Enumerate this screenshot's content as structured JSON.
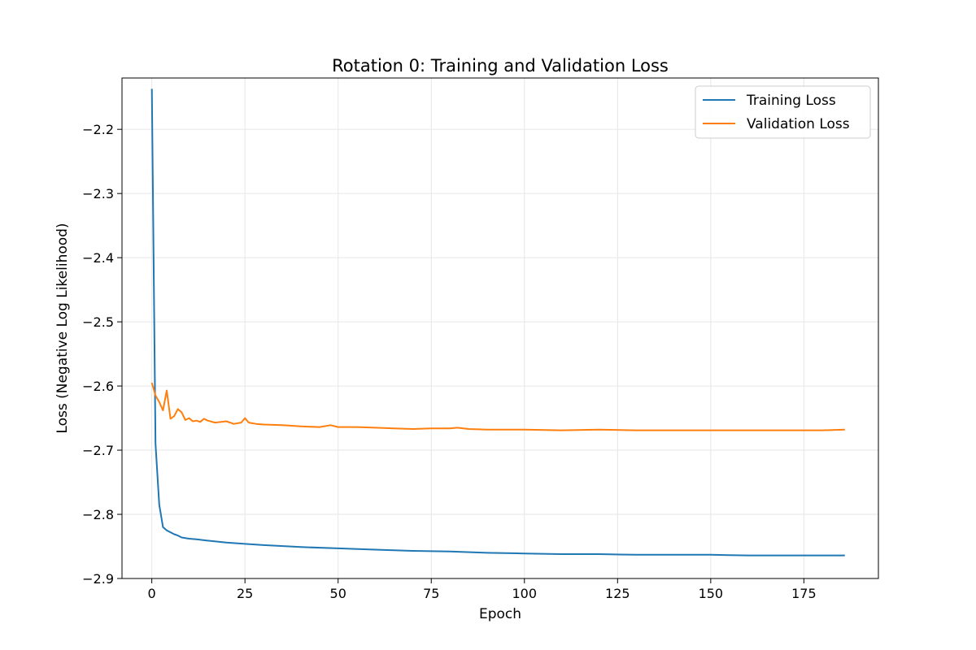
{
  "chart_data": {
    "type": "line",
    "title": "Rotation 0: Training and Validation Loss",
    "xlabel": "Epoch",
    "ylabel": "Loss (Negative Log Likelihood)",
    "xlim": [
      -8,
      195
    ],
    "ylim": [
      -2.9,
      -2.12
    ],
    "xticks": [
      0,
      25,
      50,
      75,
      100,
      125,
      150,
      175
    ],
    "yticks": [
      -2.2,
      -2.3,
      -2.4,
      -2.5,
      -2.6,
      -2.7,
      -2.8,
      -2.9
    ],
    "xtick_labels": [
      "0",
      "25",
      "50",
      "75",
      "100",
      "125",
      "150",
      "175"
    ],
    "ytick_labels": [
      "−2.2",
      "−2.3",
      "−2.4",
      "−2.5",
      "−2.6",
      "−2.7",
      "−2.8",
      "−2.9"
    ],
    "grid": true,
    "legend_position": "top-right",
    "series": [
      {
        "name": "Training Loss",
        "color": "#1f77b4",
        "x": [
          0,
          1,
          2,
          3,
          4,
          5,
          6,
          7,
          8,
          10,
          12,
          15,
          20,
          25,
          30,
          40,
          50,
          60,
          70,
          80,
          90,
          100,
          110,
          120,
          130,
          140,
          150,
          160,
          170,
          180,
          186
        ],
        "y": [
          -2.137,
          -2.69,
          -2.785,
          -2.82,
          -2.825,
          -2.828,
          -2.831,
          -2.833,
          -2.836,
          -2.838,
          -2.839,
          -2.841,
          -2.844,
          -2.846,
          -2.848,
          -2.851,
          -2.853,
          -2.855,
          -2.857,
          -2.858,
          -2.86,
          -2.861,
          -2.862,
          -2.862,
          -2.863,
          -2.863,
          -2.863,
          -2.864,
          -2.864,
          -2.864,
          -2.864
        ]
      },
      {
        "name": "Validation Loss",
        "color": "#ff7f0e",
        "x": [
          0,
          1,
          2,
          3,
          4,
          5,
          6,
          7,
          8,
          9,
          10,
          11,
          12,
          13,
          14,
          15,
          17,
          20,
          22,
          24,
          25,
          26,
          28,
          30,
          35,
          40,
          45,
          48,
          50,
          55,
          60,
          65,
          70,
          75,
          80,
          82,
          85,
          90,
          100,
          110,
          120,
          130,
          140,
          150,
          160,
          170,
          180,
          186
        ],
        "y": [
          -2.595,
          -2.615,
          -2.625,
          -2.638,
          -2.607,
          -2.651,
          -2.647,
          -2.636,
          -2.641,
          -2.653,
          -2.65,
          -2.655,
          -2.654,
          -2.656,
          -2.651,
          -2.654,
          -2.657,
          -2.655,
          -2.659,
          -2.657,
          -2.65,
          -2.657,
          -2.659,
          -2.66,
          -2.661,
          -2.663,
          -2.664,
          -2.661,
          -2.664,
          -2.664,
          -2.665,
          -2.666,
          -2.667,
          -2.666,
          -2.666,
          -2.665,
          -2.667,
          -2.668,
          -2.668,
          -2.669,
          -2.668,
          -2.669,
          -2.669,
          -2.669,
          -2.669,
          -2.669,
          -2.669,
          -2.668
        ]
      }
    ]
  }
}
